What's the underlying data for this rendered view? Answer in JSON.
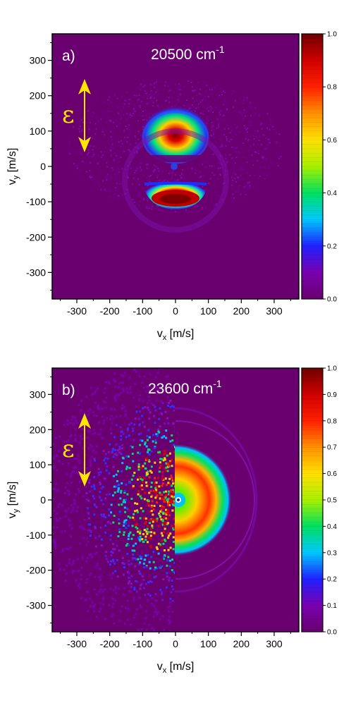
{
  "chart_data": [
    {
      "type": "heatmap",
      "panel_label": "a)",
      "title_value": "20500 cm",
      "title_exp": "-1",
      "xlabel_main": "v",
      "xlabel_sub": "x",
      "xlabel_unit": " [m/s]",
      "ylabel_main": "v",
      "ylabel_sub": "y",
      "ylabel_unit": " [m/s]",
      "xlim": [
        -375,
        375
      ],
      "ylim": [
        -375,
        375
      ],
      "x_ticks": [
        "-300",
        "-200",
        "-100",
        "0",
        "100",
        "200",
        "300"
      ],
      "y_ticks": [
        "300",
        "200",
        "100",
        "0",
        "-100",
        "-200",
        "-300"
      ],
      "colorbar_range": [
        0.0,
        1.0
      ],
      "colorbar_ticks": [
        "1.0",
        "0.8",
        "0.6",
        "0.4",
        "0.2",
        "0.0"
      ],
      "polarization_symbol": "ε",
      "colors": {
        "background": "#6a0070",
        "low": "#8a00c0",
        "mid": "#00e060",
        "high": "#d00000",
        "peak": "#7a0000"
      }
    },
    {
      "type": "heatmap",
      "panel_label": "b)",
      "title_value": "23600 cm",
      "title_exp": "-1",
      "xlabel_main": "v",
      "xlabel_sub": "x",
      "xlabel_unit": " [m/s]",
      "ylabel_main": "v",
      "ylabel_sub": "y",
      "ylabel_unit": " [m/s]",
      "xlim": [
        -375,
        375
      ],
      "ylim": [
        -375,
        375
      ],
      "x_ticks": [
        "-300",
        "-200",
        "-100",
        "0",
        "100",
        "200",
        "300"
      ],
      "y_ticks": [
        "300",
        "200",
        "100",
        "0",
        "-100",
        "-200",
        "-300"
      ],
      "colorbar_range": [
        0.0,
        1.0
      ],
      "colorbar_ticks": [
        "1.0",
        "0.9",
        "0.8",
        "0.7",
        "0.6",
        "0.5",
        "0.4",
        "0.3",
        "0.2",
        "0.1",
        "0.0"
      ],
      "polarization_symbol": "ε",
      "colors": {
        "background": "#6a0070",
        "low": "#8a00c0",
        "mid": "#00e060",
        "high": "#d00000",
        "peak": "#7a0000"
      }
    }
  ]
}
